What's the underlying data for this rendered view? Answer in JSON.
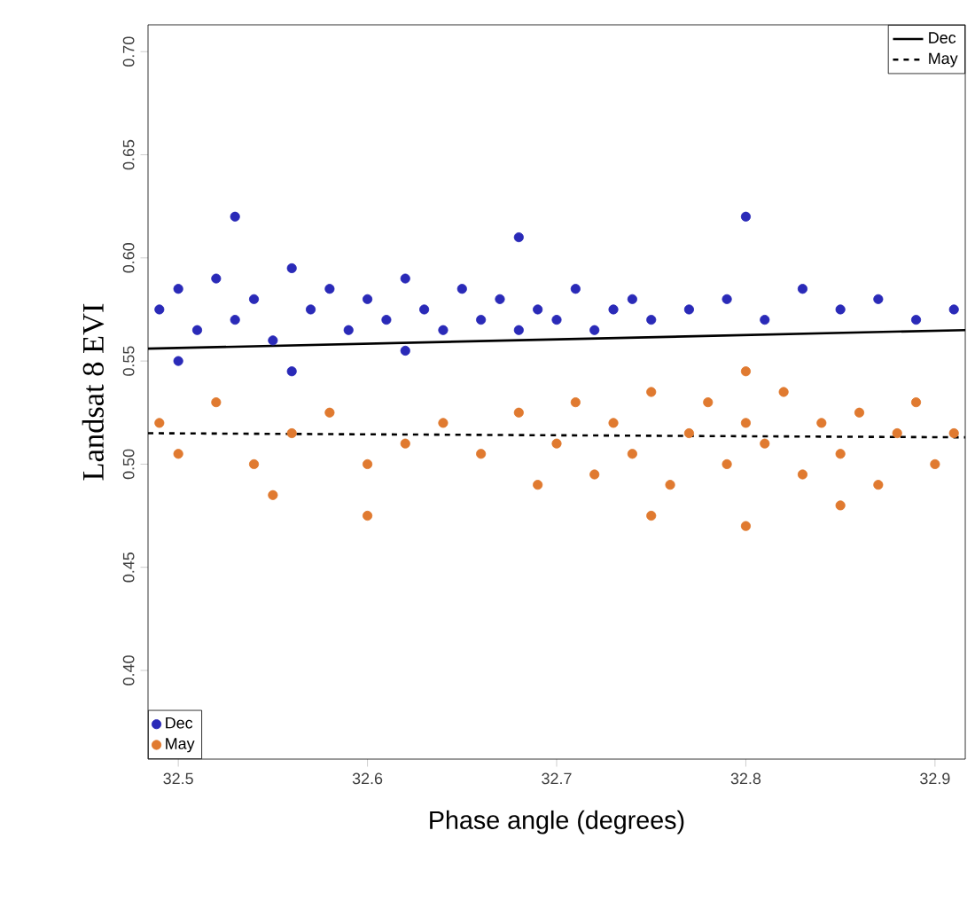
{
  "chart_data": {
    "type": "scatter",
    "xlabel": "Phase angle (degrees)",
    "ylabel": "Landsat 8 EVI",
    "xlim": [
      32.484,
      32.916
    ],
    "ylim": [
      0.357,
      0.713
    ],
    "xticks": [
      {
        "value": 32.5,
        "label": "32.5"
      },
      {
        "value": 32.6,
        "label": "32.6"
      },
      {
        "value": 32.7,
        "label": "32.7"
      },
      {
        "value": 32.8,
        "label": "32.8"
      },
      {
        "value": 32.9,
        "label": "32.9"
      }
    ],
    "yticks": [
      {
        "value": 0.4,
        "label": "0.40"
      },
      {
        "value": 0.45,
        "label": "0.45"
      },
      {
        "value": 0.5,
        "label": "0.50"
      },
      {
        "value": 0.55,
        "label": "0.55"
      },
      {
        "value": 0.6,
        "label": "0.60"
      },
      {
        "value": 0.65,
        "label": "0.65"
      },
      {
        "value": 0.7,
        "label": "0.70"
      }
    ],
    "grid": false,
    "legend": "bottom left",
    "series": [
      {
        "name": "Dec",
        "color": "#2a2ab8",
        "x": [
          32.49,
          32.5,
          32.51,
          32.52,
          32.53,
          32.54,
          32.55,
          32.56,
          32.57,
          32.58,
          32.59,
          32.6,
          32.61,
          32.62,
          32.63,
          32.64,
          32.65,
          32.66,
          32.67,
          32.68,
          32.69,
          32.7,
          32.71,
          32.72,
          32.73,
          32.74,
          32.75,
          32.77,
          32.79,
          32.81,
          32.83,
          32.85,
          32.87,
          32.89,
          32.91,
          32.5,
          32.56,
          32.62,
          32.53,
          32.68,
          32.8
        ],
        "values": [
          0.575,
          0.585,
          0.565,
          0.59,
          0.57,
          0.58,
          0.56,
          0.595,
          0.575,
          0.585,
          0.565,
          0.58,
          0.57,
          0.59,
          0.575,
          0.565,
          0.585,
          0.57,
          0.58,
          0.565,
          0.575,
          0.57,
          0.585,
          0.565,
          0.575,
          0.58,
          0.57,
          0.575,
          0.58,
          0.57,
          0.585,
          0.575,
          0.58,
          0.57,
          0.575,
          0.55,
          0.545,
          0.555,
          0.62,
          0.61,
          0.62
        ]
      },
      {
        "name": "May",
        "color": "#e07a30",
        "x": [
          32.49,
          32.5,
          32.52,
          32.54,
          32.56,
          32.58,
          32.6,
          32.62,
          32.64,
          32.66,
          32.68,
          32.69,
          32.7,
          32.71,
          32.72,
          32.73,
          32.74,
          32.75,
          32.76,
          32.77,
          32.78,
          32.79,
          32.8,
          32.81,
          32.82,
          32.83,
          32.84,
          32.85,
          32.86,
          32.87,
          32.88,
          32.89,
          32.9,
          32.91,
          32.75,
          32.8,
          32.85,
          32.55,
          32.6,
          32.8
        ],
        "values": [
          0.52,
          0.505,
          0.53,
          0.5,
          0.515,
          0.525,
          0.5,
          0.51,
          0.52,
          0.505,
          0.525,
          0.49,
          0.51,
          0.53,
          0.495,
          0.52,
          0.505,
          0.535,
          0.49,
          0.515,
          0.53,
          0.5,
          0.52,
          0.51,
          0.535,
          0.495,
          0.52,
          0.505,
          0.525,
          0.49,
          0.515,
          0.53,
          0.5,
          0.515,
          0.475,
          0.47,
          0.48,
          0.485,
          0.475,
          0.545
        ]
      },
      {
        "name": "Dec",
        "type": "line",
        "line_style": "solid",
        "color": "#000000",
        "x": [
          32.484,
          32.916
        ],
        "values": [
          0.556,
          0.565
        ]
      },
      {
        "name": "May",
        "type": "line",
        "line_style": "dashed",
        "color": "#000000",
        "x": [
          32.484,
          32.916
        ],
        "values": [
          0.515,
          0.513
        ]
      }
    ]
  }
}
